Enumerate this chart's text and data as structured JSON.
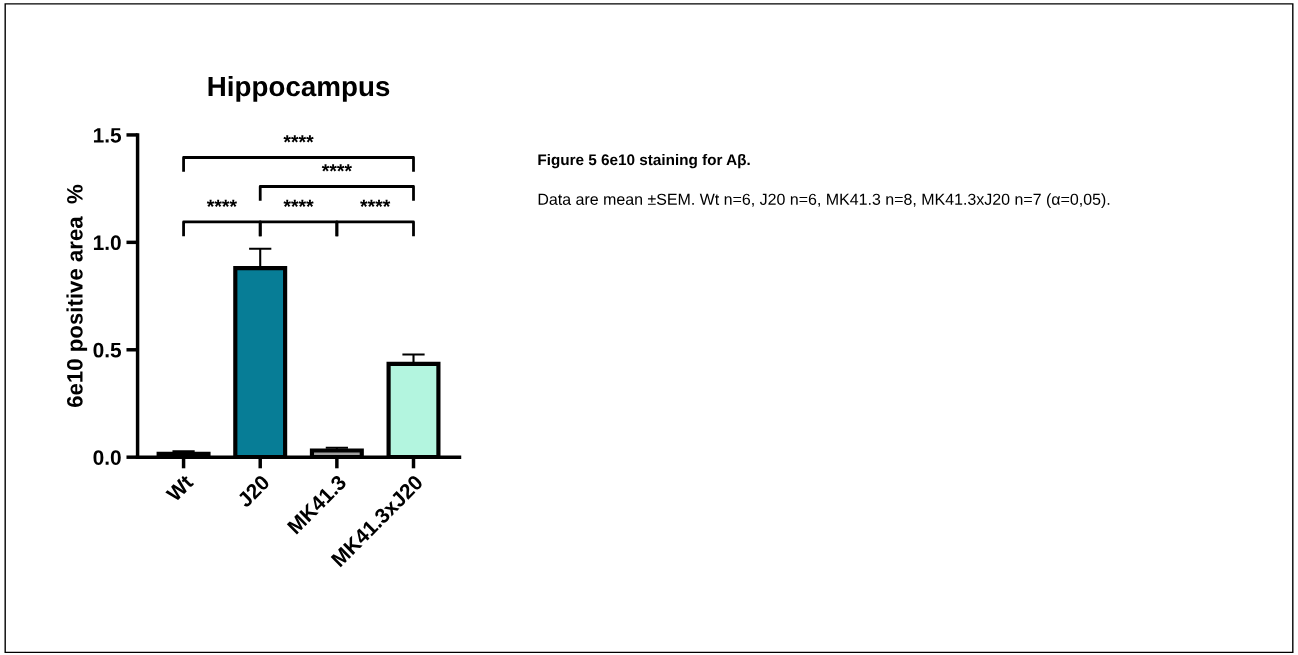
{
  "chart_data": {
    "type": "bar",
    "title": "Hippocampus",
    "ylabel": "6e10 positive area  %",
    "categories": [
      "Wt",
      "J20",
      "MK41.3",
      "MK41.3xJ20"
    ],
    "values": [
      0.016,
      0.88,
      0.031,
      0.434
    ],
    "colors": [
      "#404040",
      "#077d96",
      "#a0a0a0",
      "#b3f5df"
    ],
    "errors": [
      [
        0.016,
        0.028
      ],
      [
        0.88,
        0.97
      ],
      [
        0.031,
        0.044
      ],
      [
        0.434,
        0.478
      ]
    ],
    "ylim": [
      0,
      1.5
    ],
    "yticks": [
      {
        "value": 0,
        "label": "0.0"
      },
      0.5,
      {
        "value": 1,
        "label": "1.0"
      },
      1.5
    ],
    "grid": false,
    "annotations": [
      "****",
      "****",
      "****",
      "****",
      "****",
      "Figure 5 6e10 staining for Aβ.",
      "Data are mean ±SEM. Wt n=6, J20 n=6, MK41.3 n=8, MK41.3xJ20 n=7 (α=0,05)."
    ]
  }
}
